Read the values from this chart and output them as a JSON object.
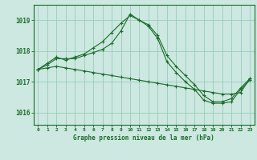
{
  "title": "Graphe pression niveau de la mer (hPa)",
  "background_color": "#cce8e0",
  "grid_color": "#99ccbb",
  "line_color": "#1a6b2a",
  "x_ticks": [
    0,
    1,
    2,
    3,
    4,
    5,
    6,
    7,
    8,
    9,
    10,
    11,
    12,
    13,
    14,
    15,
    16,
    17,
    18,
    19,
    20,
    21,
    22,
    23
  ],
  "ylim": [
    1015.6,
    1019.5
  ],
  "yticks": [
    1016,
    1017,
    1018,
    1019
  ],
  "series1_x": [
    0,
    1,
    2,
    3,
    4,
    5,
    6,
    7,
    8,
    9,
    10,
    11,
    12,
    13,
    14,
    15,
    16,
    17,
    18,
    19,
    20,
    21,
    22,
    23
  ],
  "series1_y": [
    1017.4,
    1017.6,
    1017.8,
    1017.7,
    1017.8,
    1017.9,
    1018.1,
    1018.3,
    1018.6,
    1018.9,
    1019.15,
    1019.0,
    1018.85,
    1018.5,
    1017.85,
    1017.5,
    1017.2,
    1016.9,
    1016.55,
    1016.35,
    1016.35,
    1016.45,
    1016.8,
    1017.1
  ],
  "series2_x": [
    0,
    1,
    2,
    3,
    4,
    5,
    6,
    7,
    8,
    9,
    10,
    11,
    12,
    13,
    14,
    15,
    16,
    17,
    18,
    19,
    20,
    21,
    22,
    23
  ],
  "series2_y": [
    1017.4,
    1017.55,
    1017.75,
    1017.75,
    1017.75,
    1017.85,
    1017.95,
    1018.05,
    1018.25,
    1018.65,
    1019.2,
    1019.0,
    1018.8,
    1018.4,
    1017.65,
    1017.3,
    1017.0,
    1016.75,
    1016.4,
    1016.3,
    1016.3,
    1016.35,
    1016.75,
    1017.05
  ],
  "series3_x": [
    0,
    1,
    2,
    3,
    4,
    5,
    6,
    7,
    8,
    9,
    10,
    11,
    12,
    13,
    14,
    15,
    16,
    17,
    18,
    19,
    20,
    21,
    22,
    23
  ],
  "series3_y": [
    1017.4,
    1017.45,
    1017.5,
    1017.45,
    1017.4,
    1017.35,
    1017.3,
    1017.25,
    1017.2,
    1017.15,
    1017.1,
    1017.05,
    1017.0,
    1016.95,
    1016.9,
    1016.85,
    1016.8,
    1016.75,
    1016.7,
    1016.65,
    1016.6,
    1016.6,
    1016.65,
    1017.1
  ],
  "fig_width": 3.2,
  "fig_height": 2.0,
  "dpi": 100
}
